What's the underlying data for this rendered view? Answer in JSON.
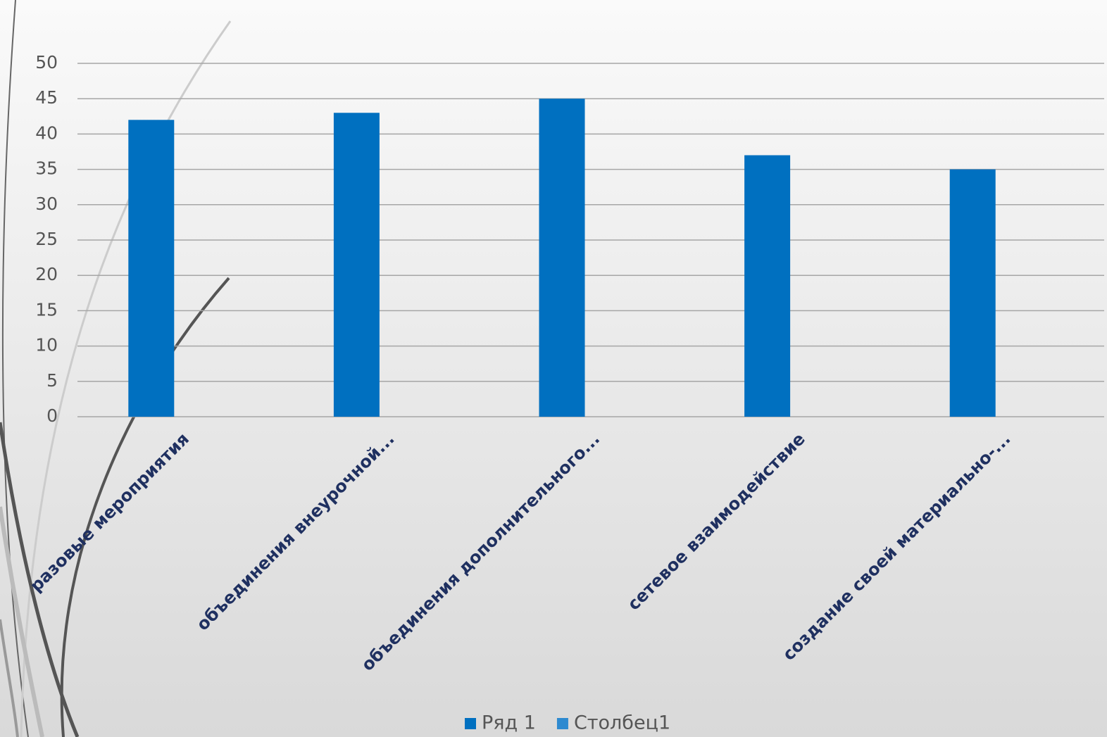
{
  "chart_data": {
    "type": "bar",
    "categories": [
      "разовые мероприятия",
      "объединения внеурочной...",
      "объединения дополнительного...",
      "сетевое взаимодействие",
      "создание своей материально-..."
    ],
    "series": [
      {
        "name": "Ряд 1",
        "color": "#0070c0",
        "values": [
          42,
          43,
          45,
          37,
          35
        ]
      },
      {
        "name": "Столбец1",
        "color": "#2e8ad0",
        "values": [
          null,
          null,
          null,
          null,
          null
        ]
      }
    ],
    "ylim": [
      0,
      50
    ],
    "yticks": [
      0,
      5,
      10,
      15,
      20,
      25,
      30,
      35,
      40,
      45,
      50
    ],
    "grid": true,
    "legend": "bottom"
  }
}
